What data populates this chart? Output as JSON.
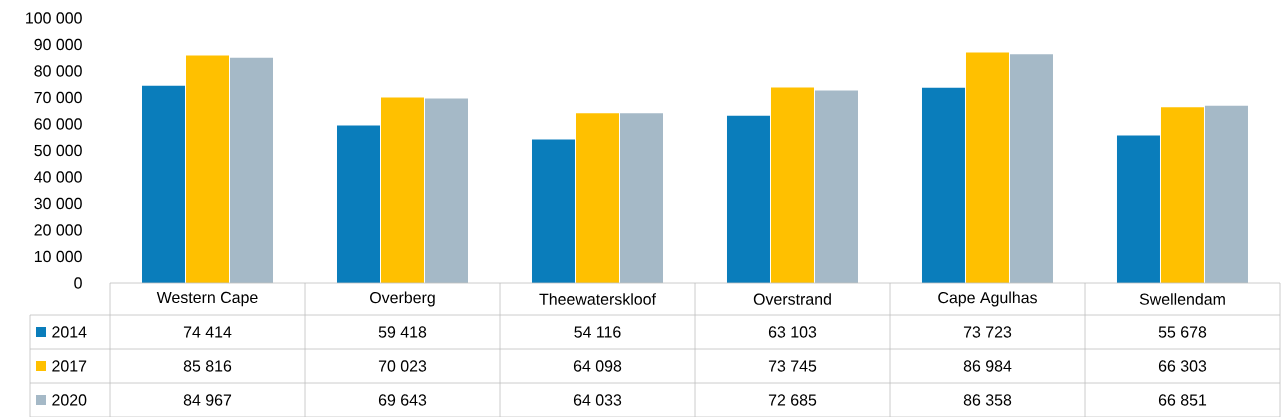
{
  "chart_data": {
    "type": "bar",
    "categories": [
      "Western Cape",
      "Overberg",
      "Theewaterskloof",
      "Overstrand",
      "Cape Agulhas",
      "Swellendam"
    ],
    "series": [
      {
        "name": "2014",
        "color": "#0a7dbb",
        "values": [
          74414,
          59418,
          54116,
          63103,
          73723,
          55678
        ],
        "value_labels": [
          "74 414",
          "59 418",
          "54 116",
          "63 103",
          "73 723",
          "55 678"
        ]
      },
      {
        "name": "2017",
        "color": "#ffc000",
        "values": [
          85816,
          70023,
          64098,
          73745,
          86984,
          66303
        ],
        "value_labels": [
          "85 816",
          "70 023",
          "64 098",
          "73 745",
          "86 984",
          "66 303"
        ]
      },
      {
        "name": "2020",
        "color": "#a5b9c7",
        "values": [
          84967,
          69643,
          64033,
          72685,
          86358,
          66851
        ],
        "value_labels": [
          "84 967",
          "69 643",
          "64 033",
          "72 685",
          "86 358",
          "66 851"
        ]
      }
    ],
    "ylim": [
      0,
      100000
    ],
    "yticks": [
      0,
      {
        "value": 10000,
        "label": "10 000"
      },
      {
        "value": 20000,
        "label": "20 000"
      },
      {
        "value": 30000,
        "label": "30 000"
      },
      {
        "value": 40000,
        "label": "40 000"
      },
      {
        "value": 50000,
        "label": "50 000"
      },
      {
        "value": 60000,
        "label": "60 000"
      },
      {
        "value": 70000,
        "label": "70 000"
      },
      {
        "value": 80000,
        "label": "80 000"
      },
      {
        "value": 90000,
        "label": "90 000"
      },
      {
        "value": 100000,
        "label": "100 000"
      }
    ],
    "legend": "bottom"
  }
}
